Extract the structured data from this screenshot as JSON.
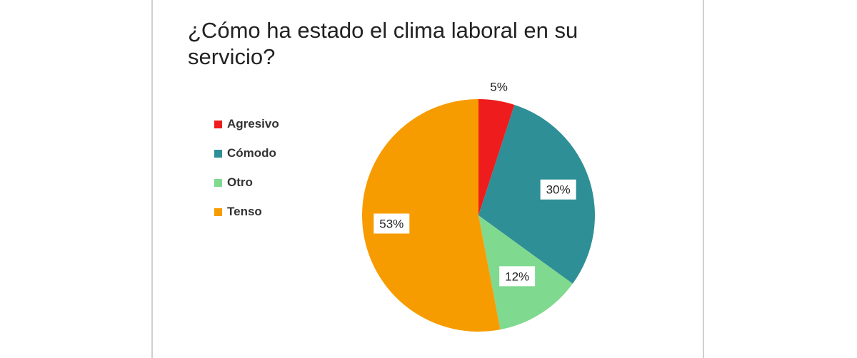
{
  "chart_data": {
    "type": "pie",
    "title": "¿Cómo ha estado el clima laboral en su servicio?",
    "legend_position": "left",
    "slices": [
      {
        "name": "Agresivo",
        "value": 5,
        "label": "5%",
        "color": "#ee1c1c"
      },
      {
        "name": "Cómodo",
        "value": 30,
        "label": "30%",
        "color": "#2e8f96"
      },
      {
        "name": "Otro",
        "value": 12,
        "label": "12%",
        "color": "#7fd98f"
      },
      {
        "name": "Tenso",
        "value": 53,
        "label": "53%",
        "color": "#f79c00"
      }
    ]
  }
}
